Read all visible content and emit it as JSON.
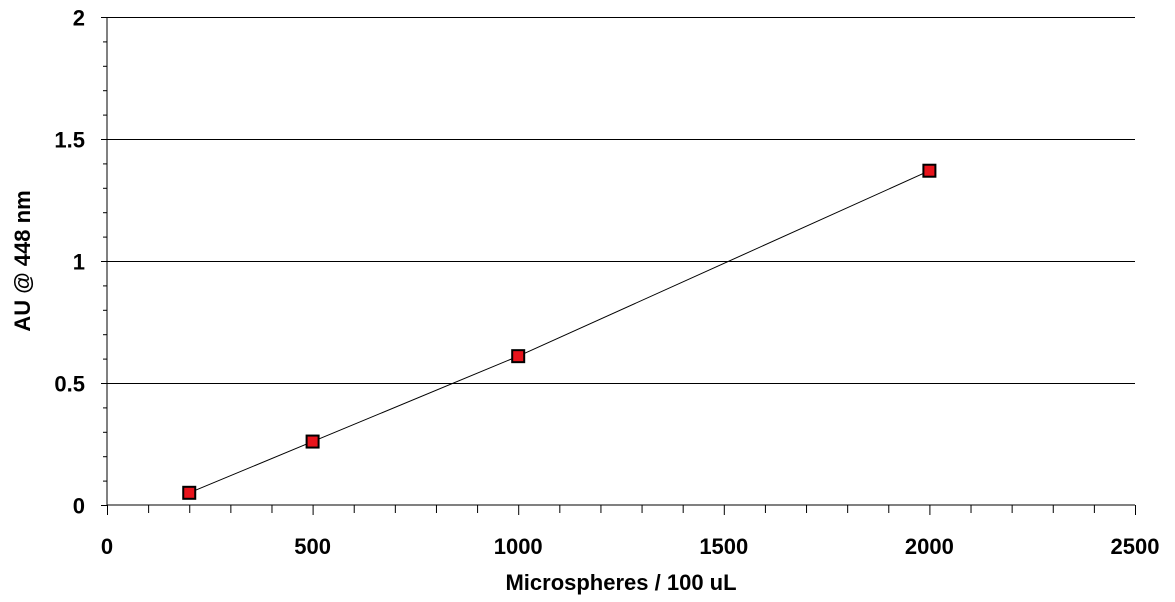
{
  "chart_data": {
    "type": "scatter",
    "title": "",
    "xlabel": "Microspheres / 100 uL",
    "ylabel": "AU @ 448 nm",
    "xlim": [
      0,
      2500
    ],
    "ylim": [
      0,
      2
    ],
    "x_ticks": [
      0,
      500,
      1000,
      1500,
      2000,
      2500
    ],
    "y_ticks": [
      0,
      0.5,
      1,
      1.5,
      2
    ],
    "x_tick_labels": [
      "0",
      "500",
      "1000",
      "1500",
      "2000",
      "2500"
    ],
    "y_tick_labels": [
      "0",
      "0.5",
      "1",
      "1.5",
      "2"
    ],
    "grid": "horizontal",
    "series": [
      {
        "marker": "square",
        "marker_color": "#e8141c",
        "line_color": "#000000",
        "points": [
          {
            "x": 200,
            "y": 0.05
          },
          {
            "x": 500,
            "y": 0.26
          },
          {
            "x": 1000,
            "y": 0.61
          },
          {
            "x": 2000,
            "y": 1.37
          }
        ]
      }
    ]
  }
}
